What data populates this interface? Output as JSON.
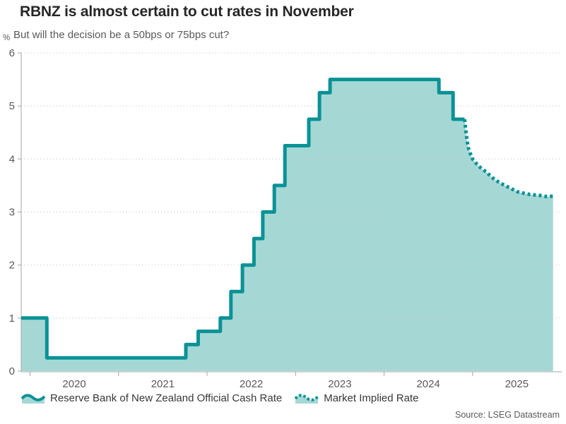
{
  "header": {
    "title": "RBNZ is almost certain to cut rates in November",
    "subtitle": "But will the decision be a 50bps or 75bps cut?"
  },
  "chart_data": {
    "type": "area",
    "title": "RBNZ is almost certain to cut rates in November",
    "subtitle": "But will the decision be a 50bps or 75bps cut?",
    "unit_label": "%",
    "xlim": [
      2019.9,
      2026.0
    ],
    "ylim": [
      0,
      6
    ],
    "yticks": [
      0,
      1,
      2,
      3,
      4,
      5,
      6
    ],
    "year_ticks": [
      2020,
      2021,
      2022,
      2023,
      2024,
      2025
    ],
    "grid": "dotted-horizontal",
    "legend_position": "bottom",
    "colors": {
      "line": "#0a9296",
      "fill": "#a5d8d5",
      "grid": "#c9c9c9",
      "axis": "#a6a6a6",
      "text": "#595959",
      "title": "#262626"
    },
    "series": [
      {
        "name": "Reserve Bank of New Zealand Official Cash Rate",
        "style": "step-area-solid",
        "color": "#0a9296",
        "fill": "#a5d8d5",
        "points": [
          [
            2019.9,
            1.0
          ],
          [
            2020.19,
            0.25
          ],
          [
            2021.76,
            0.5
          ],
          [
            2021.9,
            0.75
          ],
          [
            2022.15,
            1.0
          ],
          [
            2022.27,
            1.5
          ],
          [
            2022.4,
            2.0
          ],
          [
            2022.53,
            2.5
          ],
          [
            2022.63,
            3.0
          ],
          [
            2022.76,
            3.5
          ],
          [
            2022.88,
            4.25
          ],
          [
            2023.15,
            4.75
          ],
          [
            2023.27,
            5.25
          ],
          [
            2023.39,
            5.5
          ],
          [
            2024.62,
            5.25
          ],
          [
            2024.78,
            4.75
          ],
          [
            2024.91,
            4.75
          ]
        ]
      },
      {
        "name": "Market Implied Rate",
        "style": "dotted-line-area",
        "color": "#0a9296",
        "fill": "#a5d8d5",
        "points": [
          [
            2024.91,
            4.75
          ],
          [
            2024.93,
            4.45
          ],
          [
            2024.95,
            4.22
          ],
          [
            2024.98,
            4.08
          ],
          [
            2025.0,
            4.0
          ],
          [
            2025.05,
            3.9
          ],
          [
            2025.1,
            3.82
          ],
          [
            2025.16,
            3.75
          ],
          [
            2025.2,
            3.68
          ],
          [
            2025.26,
            3.6
          ],
          [
            2025.32,
            3.54
          ],
          [
            2025.39,
            3.48
          ],
          [
            2025.45,
            3.43
          ],
          [
            2025.51,
            3.38
          ],
          [
            2025.59,
            3.35
          ],
          [
            2025.65,
            3.33
          ],
          [
            2025.71,
            3.32
          ],
          [
            2025.78,
            3.31
          ],
          [
            2025.84,
            3.29
          ],
          [
            2025.91,
            3.3
          ]
        ]
      }
    ],
    "source": "Source: LSEG Datastream"
  },
  "legend": {
    "items": [
      {
        "label": "Reserve Bank of New Zealand Official Cash Rate",
        "icon": "solid-wave-legend-icon"
      },
      {
        "label": "Market Implied Rate",
        "icon": "dotted-wave-legend-icon"
      }
    ]
  },
  "source": "Source: LSEG Datastream"
}
